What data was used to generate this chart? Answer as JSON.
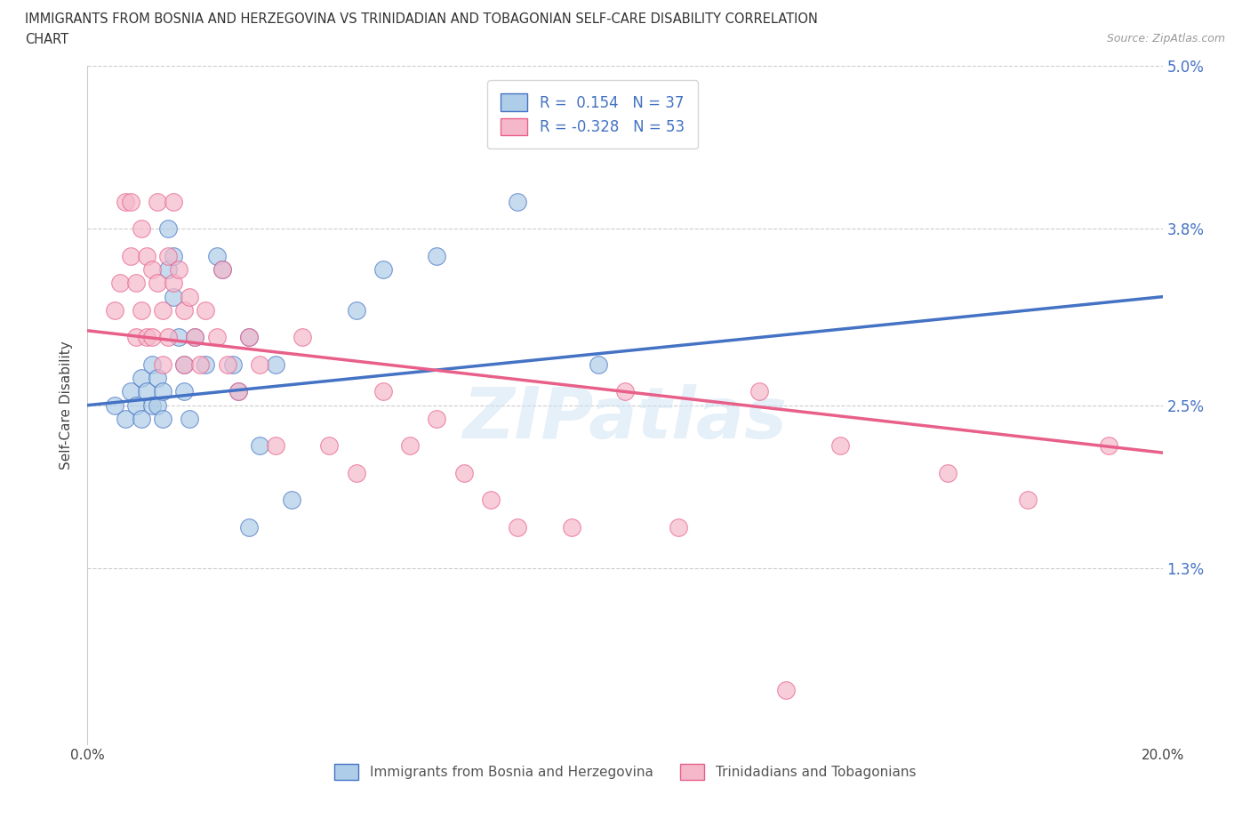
{
  "title_line1": "IMMIGRANTS FROM BOSNIA AND HERZEGOVINA VS TRINIDADIAN AND TOBAGONIAN SELF-CARE DISABILITY CORRELATION",
  "title_line2": "CHART",
  "source_text": "Source: ZipAtlas.com",
  "ylabel": "Self-Care Disability",
  "xlim": [
    0,
    0.2
  ],
  "ylim": [
    0,
    0.05
  ],
  "yticks": [
    0.0,
    0.013,
    0.025,
    0.038,
    0.05
  ],
  "ytick_labels_left": [
    "",
    "",
    "",
    "",
    ""
  ],
  "ytick_labels_right": [
    "",
    "1.3%",
    "2.5%",
    "3.8%",
    "5.0%"
  ],
  "xticks": [
    0.0,
    0.05,
    0.1,
    0.15,
    0.2
  ],
  "xtick_labels": [
    "0.0%",
    "",
    "",
    "",
    "20.0%"
  ],
  "blue_R": 0.154,
  "blue_N": 37,
  "pink_R": -0.328,
  "pink_N": 53,
  "blue_color": "#aecde8",
  "pink_color": "#f5b8cb",
  "blue_line_color": "#4472c4",
  "pink_line_color": "#e8608a",
  "blue_line_start_y": 0.025,
  "blue_line_end_y": 0.033,
  "pink_line_start_y": 0.0305,
  "pink_line_end_y": 0.0215,
  "legend_label_blue": "Immigrants from Bosnia and Herzegovina",
  "legend_label_pink": "Trinidadians and Tobagonians",
  "watermark": "ZIPatlas",
  "blue_scatter_x": [
    0.005,
    0.007,
    0.008,
    0.009,
    0.01,
    0.01,
    0.011,
    0.012,
    0.012,
    0.013,
    0.013,
    0.014,
    0.014,
    0.015,
    0.015,
    0.016,
    0.016,
    0.017,
    0.018,
    0.018,
    0.019,
    0.02,
    0.022,
    0.024,
    0.025,
    0.027,
    0.028,
    0.03,
    0.032,
    0.035,
    0.038,
    0.05,
    0.055,
    0.065,
    0.08,
    0.095,
    0.03
  ],
  "blue_scatter_y": [
    0.025,
    0.024,
    0.026,
    0.025,
    0.027,
    0.024,
    0.026,
    0.028,
    0.025,
    0.027,
    0.025,
    0.026,
    0.024,
    0.038,
    0.035,
    0.036,
    0.033,
    0.03,
    0.028,
    0.026,
    0.024,
    0.03,
    0.028,
    0.036,
    0.035,
    0.028,
    0.026,
    0.03,
    0.022,
    0.028,
    0.018,
    0.032,
    0.035,
    0.036,
    0.04,
    0.028,
    0.016
  ],
  "pink_scatter_x": [
    0.005,
    0.006,
    0.007,
    0.008,
    0.008,
    0.009,
    0.009,
    0.01,
    0.01,
    0.011,
    0.011,
    0.012,
    0.012,
    0.013,
    0.013,
    0.014,
    0.014,
    0.015,
    0.015,
    0.016,
    0.016,
    0.017,
    0.018,
    0.018,
    0.019,
    0.02,
    0.021,
    0.022,
    0.024,
    0.025,
    0.026,
    0.028,
    0.03,
    0.032,
    0.035,
    0.04,
    0.045,
    0.05,
    0.055,
    0.06,
    0.065,
    0.07,
    0.075,
    0.08,
    0.09,
    0.1,
    0.11,
    0.125,
    0.14,
    0.16,
    0.175,
    0.19,
    0.13
  ],
  "pink_scatter_y": [
    0.032,
    0.034,
    0.04,
    0.04,
    0.036,
    0.034,
    0.03,
    0.038,
    0.032,
    0.036,
    0.03,
    0.035,
    0.03,
    0.04,
    0.034,
    0.032,
    0.028,
    0.036,
    0.03,
    0.04,
    0.034,
    0.035,
    0.032,
    0.028,
    0.033,
    0.03,
    0.028,
    0.032,
    0.03,
    0.035,
    0.028,
    0.026,
    0.03,
    0.028,
    0.022,
    0.03,
    0.022,
    0.02,
    0.026,
    0.022,
    0.024,
    0.02,
    0.018,
    0.016,
    0.016,
    0.026,
    0.016,
    0.026,
    0.022,
    0.02,
    0.018,
    0.022,
    0.004
  ]
}
